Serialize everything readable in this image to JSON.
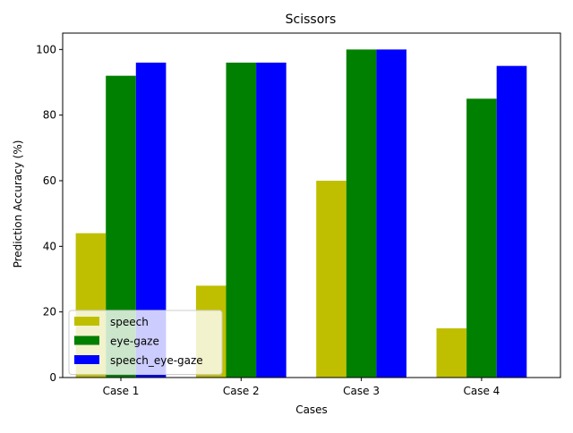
{
  "chart_data": {
    "type": "bar",
    "title": "Scissors",
    "xlabel": "Cases",
    "ylabel": "Prediction Accuracy (%)",
    "categories": [
      "Case 1",
      "Case 2",
      "Case 3",
      "Case 4"
    ],
    "ylim": [
      0,
      105
    ],
    "yticks": [
      0,
      20,
      40,
      60,
      80,
      100
    ],
    "grid": false,
    "legend_position": "lower-left",
    "series": [
      {
        "name": "speech",
        "color": "#bfbf00",
        "values": [
          44,
          28,
          60,
          15
        ]
      },
      {
        "name": "eye-gaze",
        "color": "#008000",
        "values": [
          92,
          96,
          100,
          85
        ]
      },
      {
        "name": "speech_eye-gaze",
        "color": "#0000ff",
        "values": [
          96,
          96,
          100,
          95
        ]
      }
    ]
  }
}
